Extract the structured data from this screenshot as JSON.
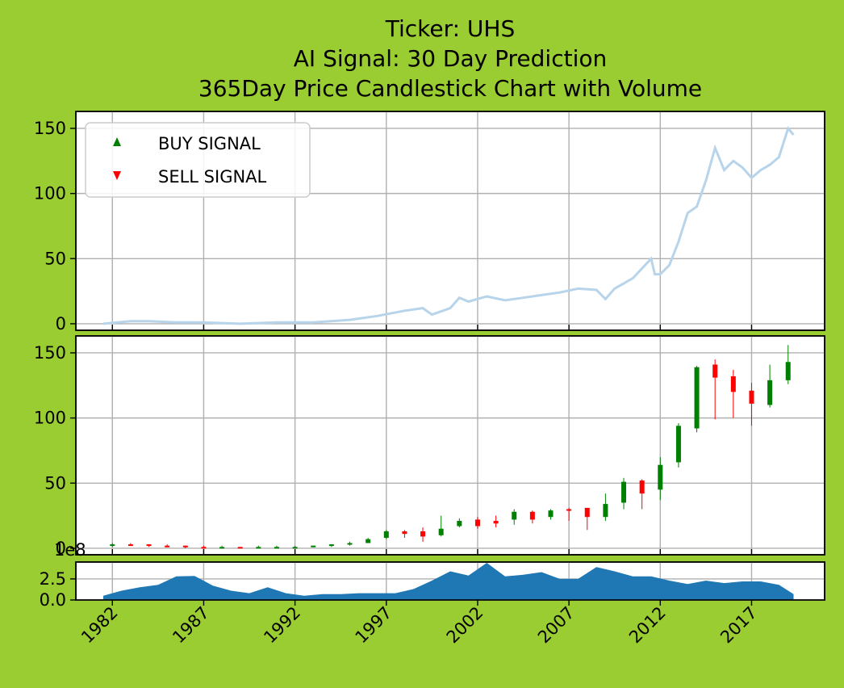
{
  "title": {
    "line1": "Ticker: UHS",
    "line2": "AI Signal: 30 Day Prediction",
    "line3": "365Day Price Candlestick Chart with Volume"
  },
  "colors": {
    "background": "#9acd32",
    "price_line": "#b7d4ea",
    "up": "#008000",
    "down": "#ff0000",
    "volume_fill": "#1f77b4"
  },
  "legend": {
    "placement": "upper-left",
    "buy": "BUY SIGNAL",
    "sell": "SELL SIGNAL"
  },
  "volume_exponent_label": "1e8",
  "chart_data": [
    {
      "type": "line",
      "panel": "price",
      "ylim": [
        -5,
        163
      ],
      "yticks": [
        "0",
        "50",
        "100",
        "150"
      ],
      "grid": true,
      "x": [
        1981.5,
        1983.0,
        1984.0,
        1985.5,
        1987.0,
        1989.0,
        1991.0,
        1993.0,
        1995.0,
        1996.5,
        1998.0,
        1999.0,
        1999.5,
        2000.5,
        2001.0,
        2001.5,
        2002.5,
        2003.5,
        2004.5,
        2005.5,
        2006.5,
        2007.5,
        2008.5,
        2009.0,
        2009.5,
        2010.5,
        2011.5,
        2011.7,
        2012.0,
        2012.5,
        2013.0,
        2013.5,
        2014.0,
        2014.5,
        2015.0,
        2015.5,
        2016.0,
        2016.5,
        2017.0,
        2017.5,
        2018.0,
        2018.5,
        2019.0,
        2019.3
      ],
      "values": [
        0,
        2,
        2,
        1,
        1,
        0,
        1,
        1,
        3,
        6,
        10,
        12,
        7,
        12,
        20,
        17,
        21,
        18,
        20,
        22,
        24,
        27,
        26,
        19,
        27,
        35,
        50,
        38,
        38,
        45,
        63,
        85,
        90,
        110,
        135,
        118,
        125,
        120,
        112,
        118,
        122,
        128,
        150,
        145
      ]
    },
    {
      "type": "candlestick",
      "panel": "candles",
      "ylim": [
        -5,
        163
      ],
      "yticks": [
        "0",
        "50",
        "100",
        "150"
      ],
      "grid": true,
      "x": [
        1982,
        1983,
        1984,
        1985,
        1986,
        1987,
        1988,
        1989,
        1990,
        1991,
        1992,
        1993,
        1994,
        1995,
        1996,
        1997,
        1998,
        1999,
        2000,
        2001,
        2002,
        2003,
        2004,
        2005,
        2006,
        2007,
        2008,
        2009,
        2010,
        2011,
        2012,
        2013,
        2014,
        2015,
        2016,
        2017,
        2018,
        2019
      ],
      "open": [
        2,
        3,
        3,
        2,
        2,
        1,
        1,
        1,
        1,
        1,
        1,
        1,
        2,
        3,
        4,
        8,
        13,
        13,
        10,
        17,
        22,
        21,
        22,
        28,
        24,
        30,
        31,
        24,
        35,
        52,
        45,
        66,
        92,
        141,
        132,
        121,
        110,
        129
      ],
      "close": [
        3,
        2,
        2,
        1,
        1,
        0,
        1,
        0,
        1,
        1,
        1,
        2,
        3,
        4,
        7,
        13,
        11,
        9,
        15,
        21,
        17,
        19,
        28,
        22,
        29,
        29,
        24,
        34,
        51,
        42,
        64,
        94,
        139,
        131,
        120,
        111,
        129,
        143
      ],
      "high": [
        4,
        4,
        3,
        3,
        2,
        2,
        2,
        1,
        2,
        2,
        2,
        2,
        3,
        5,
        8,
        14,
        14,
        16,
        25,
        23,
        24,
        25,
        30,
        29,
        30,
        31,
        31,
        42,
        54,
        53,
        70,
        96,
        140,
        145,
        137,
        127,
        141,
        156
      ],
      "low": [
        1,
        2,
        1,
        1,
        0,
        0,
        0,
        0,
        0,
        0,
        0,
        1,
        1,
        2,
        4,
        7,
        8,
        5,
        9,
        16,
        15,
        16,
        18,
        19,
        22,
        21,
        14,
        21,
        30,
        30,
        37,
        62,
        89,
        99,
        100,
        94,
        108,
        126
      ]
    },
    {
      "type": "area",
      "panel": "volume",
      "ylim": [
        0,
        4.5
      ],
      "yticks": [
        "0.0",
        "2.5"
      ],
      "grid": true,
      "x": [
        1981.5,
        1982.5,
        1983.5,
        1984.5,
        1985.5,
        1986.5,
        1987.5,
        1988.5,
        1989.5,
        1990.5,
        1991.5,
        1992.5,
        1993.5,
        1994.5,
        1995.5,
        1996.5,
        1997.5,
        1998.5,
        1999.5,
        2000.5,
        2001.5,
        2002.5,
        2003.5,
        2004.5,
        2005.5,
        2006.5,
        2007.5,
        2008.5,
        2009.5,
        2010.5,
        2011.5,
        2012.5,
        2013.5,
        2014.5,
        2015.5,
        2016.5,
        2017.5,
        2018.5,
        2019.3
      ],
      "values": [
        0.5,
        1.1,
        1.5,
        1.8,
        2.8,
        2.85,
        1.7,
        1.1,
        0.8,
        1.5,
        0.8,
        0.5,
        0.7,
        0.7,
        0.8,
        0.8,
        0.8,
        1.3,
        2.3,
        3.4,
        2.9,
        4.4,
        2.8,
        3.0,
        3.3,
        2.5,
        2.5,
        3.9,
        3.4,
        2.8,
        2.8,
        2.3,
        1.9,
        2.3,
        2.0,
        2.2,
        2.2,
        1.8,
        0.7
      ]
    }
  ],
  "x_axis": {
    "tick_labels": [
      "1982",
      "1987",
      "1992",
      "1997",
      "2002",
      "2007",
      "2012",
      "2017"
    ],
    "tick_years": [
      1982,
      1987,
      1992,
      1997,
      2002,
      2007,
      2012,
      2017
    ]
  }
}
